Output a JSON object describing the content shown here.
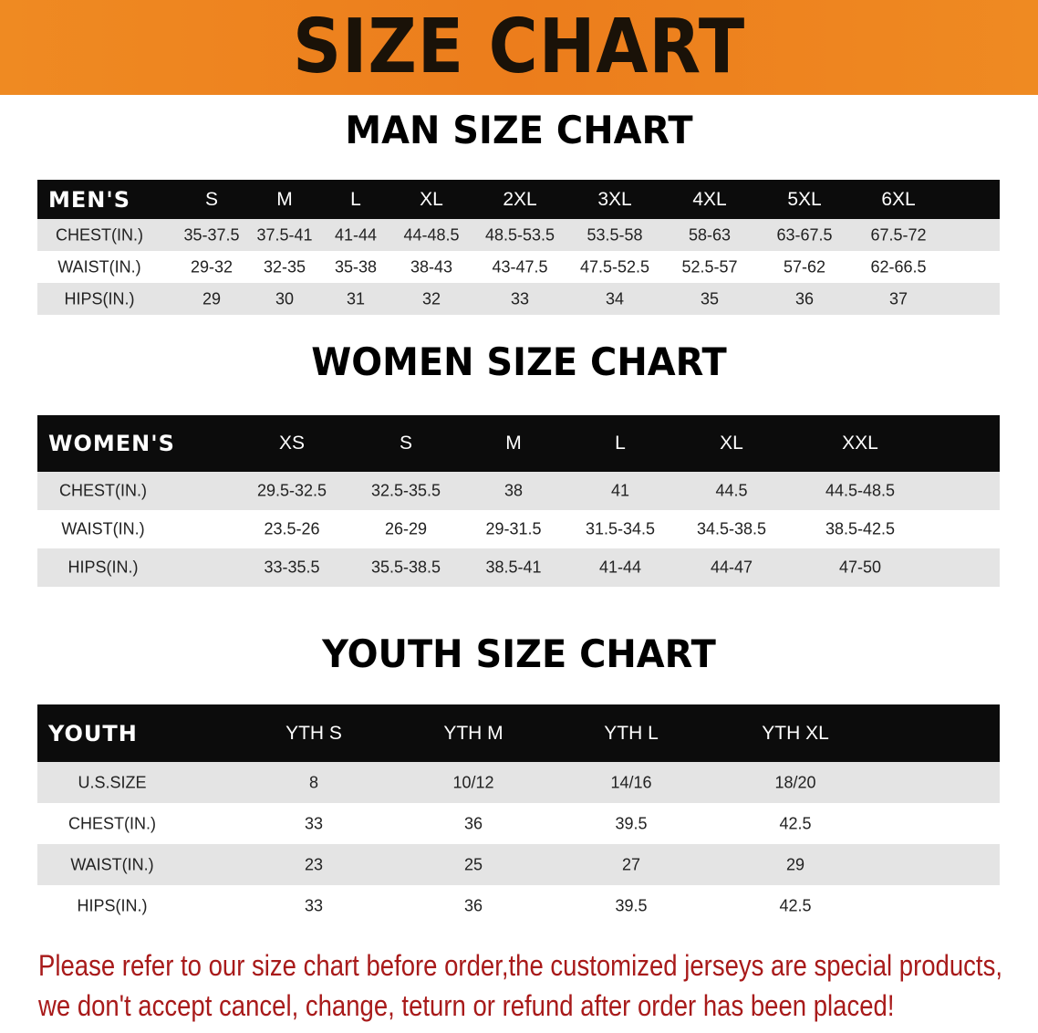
{
  "banner_title": "SIZE CHART",
  "men": {
    "heading": "MAN SIZE CHART",
    "header_label": "MEN'S",
    "sizes": [
      "S",
      "M",
      "L",
      "XL",
      "2XL",
      "3XL",
      "4XL",
      "5XL",
      "6XL"
    ],
    "rows": [
      {
        "label": "CHEST(IN.)",
        "values": [
          "35-37.5",
          "37.5-41",
          "41-44",
          "44-48.5",
          "48.5-53.5",
          "53.5-58",
          "58-63",
          "63-67.5",
          "67.5-72"
        ]
      },
      {
        "label": "WAIST(IN.)",
        "values": [
          "29-32",
          "32-35",
          "35-38",
          "38-43",
          "43-47.5",
          "47.5-52.5",
          "52.5-57",
          "57-62",
          "62-66.5"
        ]
      },
      {
        "label": "HIPS(IN.)",
        "values": [
          "29",
          "30",
          "31",
          "32",
          "33",
          "34",
          "35",
          "36",
          "37"
        ]
      }
    ]
  },
  "women": {
    "heading": "WOMEN SIZE CHART",
    "header_label": "WOMEN'S",
    "sizes": [
      "XS",
      "S",
      "M",
      "L",
      "XL",
      "XXL"
    ],
    "rows": [
      {
        "label": "CHEST(IN.)",
        "values": [
          "29.5-32.5",
          "32.5-35.5",
          "38",
          "41",
          "44.5",
          "44.5-48.5"
        ]
      },
      {
        "label": "WAIST(IN.)",
        "values": [
          "23.5-26",
          "26-29",
          "29-31.5",
          "31.5-34.5",
          "34.5-38.5",
          "38.5-42.5"
        ]
      },
      {
        "label": "HIPS(IN.)",
        "values": [
          "33-35.5",
          "35.5-38.5",
          "38.5-41",
          "41-44",
          "44-47",
          "47-50"
        ]
      }
    ]
  },
  "youth": {
    "heading": "YOUTH SIZE CHART",
    "header_label": "YOUTH",
    "sizes": [
      "YTH S",
      "YTH M",
      "YTH L",
      "YTH XL"
    ],
    "rows": [
      {
        "label": "U.S.SIZE",
        "values": [
          "8",
          "10/12",
          "14/16",
          "18/20"
        ]
      },
      {
        "label": "CHEST(IN.)",
        "values": [
          "33",
          "36",
          "39.5",
          "42.5"
        ]
      },
      {
        "label": "WAIST(IN.)",
        "values": [
          "23",
          "25",
          "27",
          "29"
        ]
      },
      {
        "label": "HIPS(IN.)",
        "values": [
          "33",
          "36",
          "39.5",
          "42.5"
        ]
      }
    ]
  },
  "note_lines": [
    "Please refer to our size chart before order,the customized jerseys are special products,",
    "we don't accept cancel, change, teturn or refund after order has been placed!"
  ],
  "colors": {
    "banner": "#ec7d1c",
    "header_row": "#0c0c0c",
    "shaded_row": "#e4e4e4",
    "note_text": "#a81a1a"
  }
}
